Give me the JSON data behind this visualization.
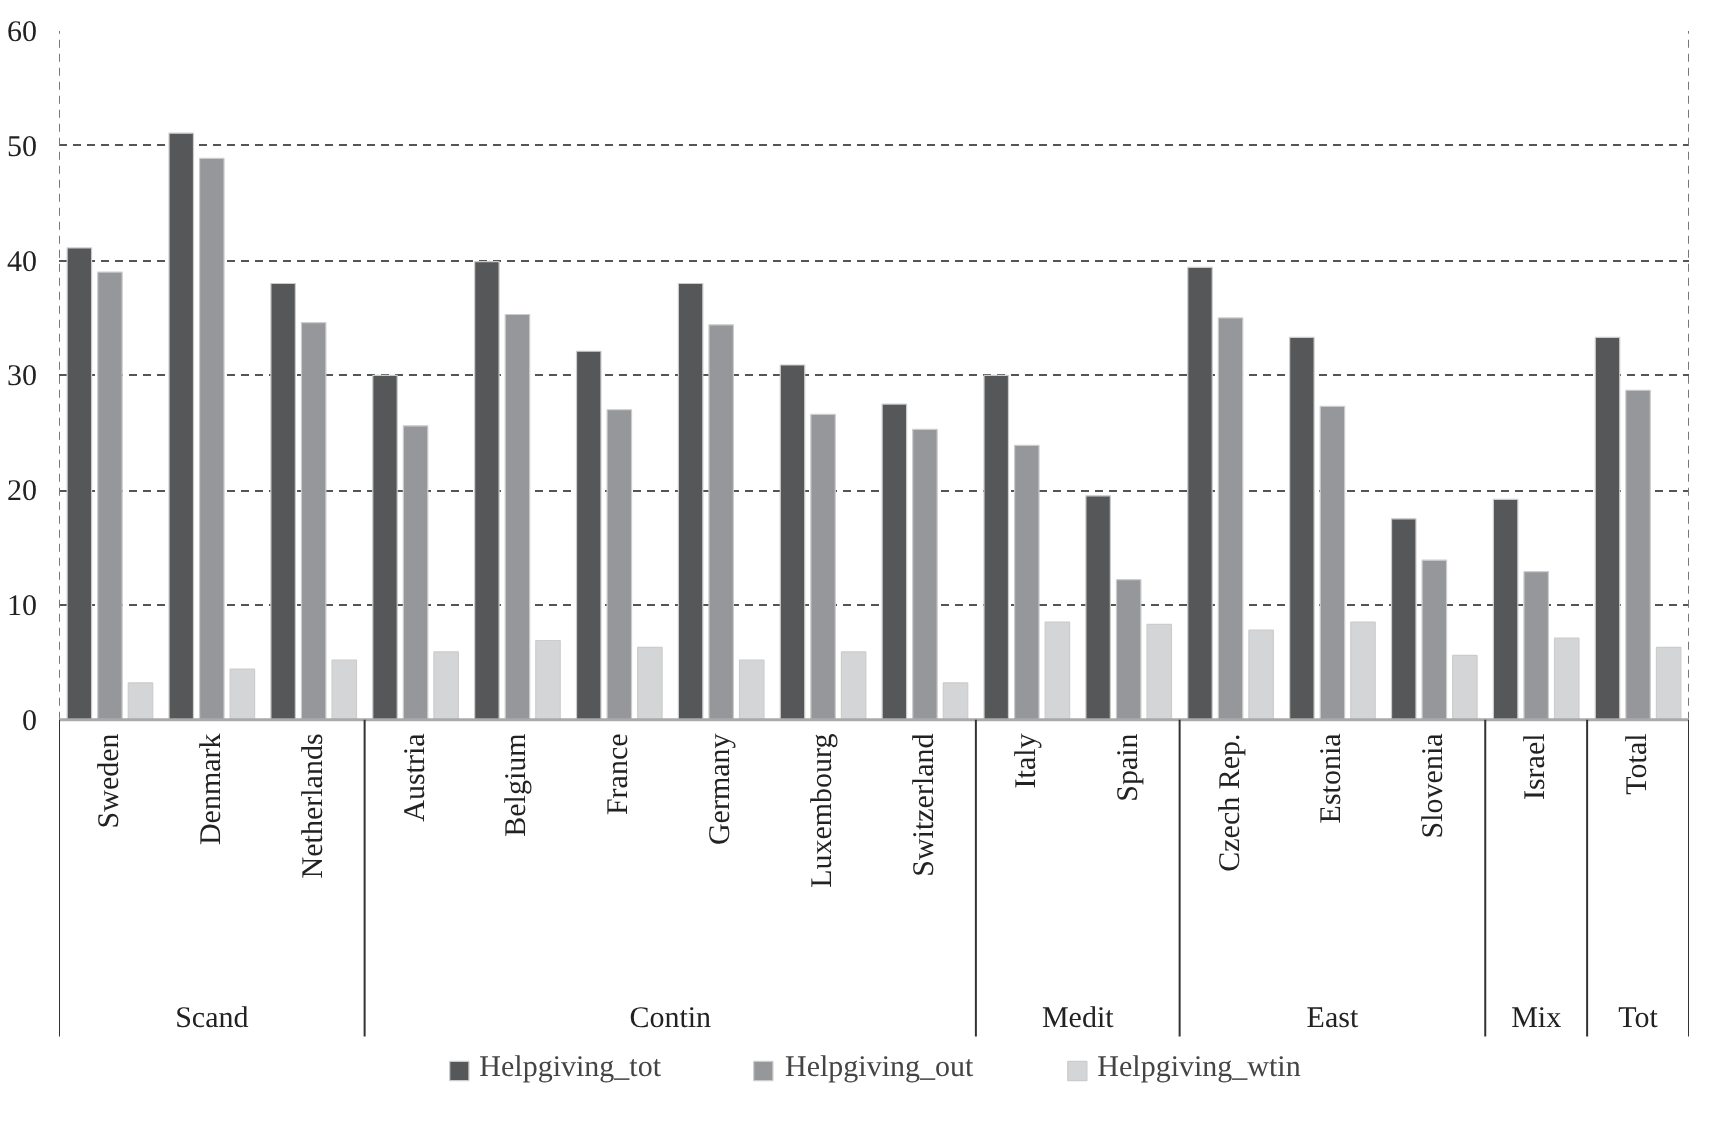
{
  "chart_data": {
    "type": "bar",
    "categories": [
      "Sweden",
      "Denmark",
      "Netherlands",
      "Austria",
      "Belgium",
      "France",
      "Germany",
      "Luxembourg",
      "Switzerland",
      "Italy",
      "Spain",
      "Czech Rep.",
      "Estonia",
      "Slovenia",
      "Israel",
      "Total"
    ],
    "series": [
      {
        "name": "Helpgiving_tot",
        "color": "#555759",
        "values": [
          41.1,
          51.1,
          38.0,
          30.0,
          39.9,
          32.1,
          38.0,
          30.9,
          27.5,
          30.0,
          19.5,
          39.4,
          33.3,
          17.5,
          19.2,
          33.3
        ]
      },
      {
        "name": "Helpgiving_out",
        "color": "#96979a",
        "values": [
          39.0,
          48.9,
          34.6,
          25.6,
          35.3,
          27.0,
          34.4,
          26.6,
          25.3,
          23.9,
          12.2,
          35.0,
          27.3,
          13.9,
          12.9,
          28.7
        ]
      },
      {
        "name": "Helpgiving_wtin",
        "color": "#d4d5d7",
        "values": [
          3.2,
          4.4,
          5.2,
          5.9,
          6.9,
          6.3,
          5.2,
          5.9,
          3.2,
          8.5,
          8.3,
          7.8,
          8.5,
          5.6,
          7.1,
          6.3
        ]
      }
    ],
    "ylim": [
      0,
      60
    ],
    "yticks": [
      0,
      10,
      20,
      30,
      40,
      50,
      60
    ],
    "grid": "y",
    "legend": "bottom",
    "annotations": [
      "Scand",
      "Contin",
      "Medit",
      "East",
      "Mix",
      "Tot"
    ]
  }
}
